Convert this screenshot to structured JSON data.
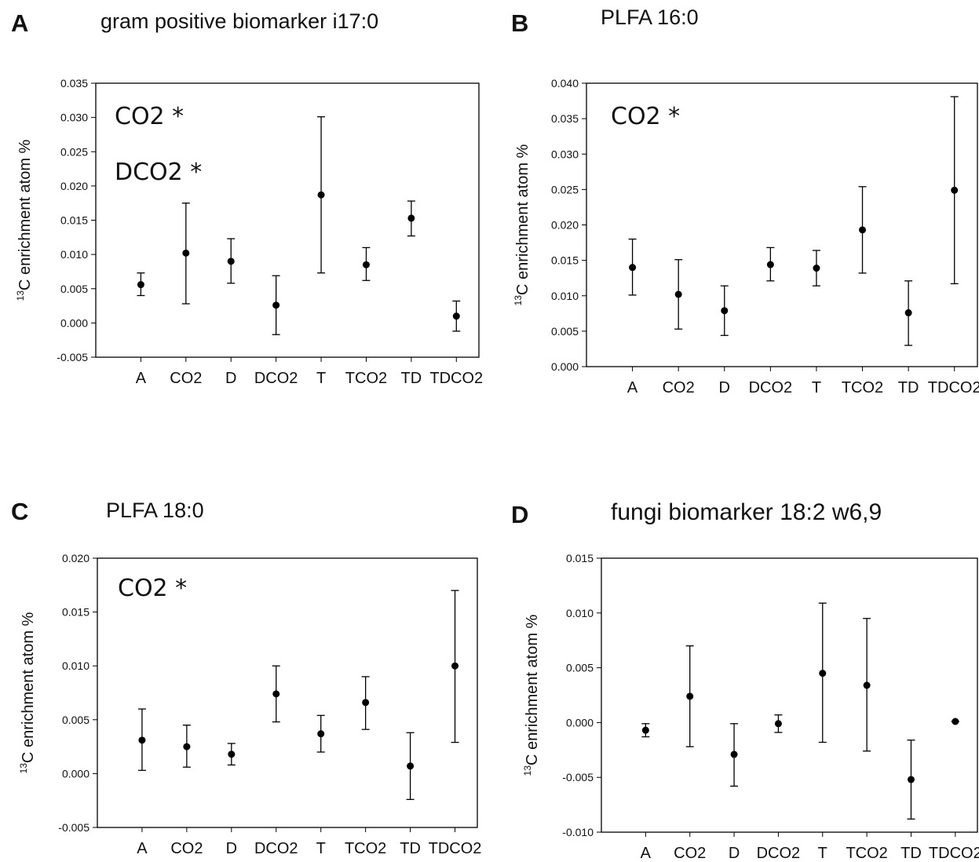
{
  "chart_data": [
    {
      "type": "scatter",
      "panel_letter": "A",
      "title": "gram positive biomarker i17:0",
      "ylabel_sup": "13",
      "ylabel_text": "C enrichment atom %",
      "categories": [
        "A",
        "CO2",
        "D",
        "DCO2",
        "T",
        "TCO2",
        "TD",
        "TDCO2"
      ],
      "values": [
        0.0056,
        0.0102,
        0.009,
        0.0026,
        0.0187,
        0.0085,
        0.0153,
        0.001
      ],
      "err_low": [
        0.004,
        0.0028,
        0.0058,
        -0.0017,
        0.0073,
        0.0062,
        0.0127,
        -0.0012
      ],
      "err_high": [
        0.0073,
        0.0175,
        0.0123,
        0.0069,
        0.0301,
        0.011,
        0.0178,
        0.0032
      ],
      "yticks": [
        "-0.005",
        "0.000",
        "0.005",
        "0.010",
        "0.015",
        "0.020",
        "0.025",
        "0.030",
        "0.035"
      ],
      "ylim": [
        -0.005,
        0.035
      ],
      "annotations": [
        "CO2 *",
        "DCO2 *"
      ],
      "grid": false
    },
    {
      "type": "scatter",
      "panel_letter": "B",
      "title": "PLFA 16:0",
      "ylabel_sup": "13",
      "ylabel_text": "C enrichment atom %",
      "categories": [
        "A",
        "CO2",
        "D",
        "DCO2",
        "T",
        "TCO2",
        "TD",
        "TDCO2"
      ],
      "values": [
        0.014,
        0.0102,
        0.0079,
        0.0144,
        0.0139,
        0.0193,
        0.0076,
        0.0249
      ],
      "err_low": [
        0.0101,
        0.0053,
        0.0044,
        0.0121,
        0.0114,
        0.0132,
        0.003,
        0.0117
      ],
      "err_high": [
        0.018,
        0.0151,
        0.0114,
        0.0168,
        0.0164,
        0.0254,
        0.0121,
        0.0381
      ],
      "yticks": [
        "0.000",
        "0.005",
        "0.010",
        "0.015",
        "0.020",
        "0.025",
        "0.030",
        "0.035",
        "0.040"
      ],
      "ylim": [
        0.0,
        0.04
      ],
      "annotations": [
        "CO2 *"
      ],
      "grid": false
    },
    {
      "type": "scatter",
      "panel_letter": "C",
      "title": "PLFA 18:0",
      "ylabel_sup": "13",
      "ylabel_text": "C enrichment atom %",
      "categories": [
        "A",
        "CO2",
        "D",
        "DCO2",
        "T",
        "TCO2",
        "TD",
        "TDCO2"
      ],
      "values": [
        0.0031,
        0.0025,
        0.0018,
        0.0074,
        0.0037,
        0.0066,
        0.0007,
        0.01
      ],
      "err_low": [
        0.0003,
        0.0006,
        0.0008,
        0.0048,
        0.002,
        0.0041,
        -0.0024,
        0.0029
      ],
      "err_high": [
        0.006,
        0.0045,
        0.0028,
        0.01,
        0.0054,
        0.009,
        0.0038,
        0.017
      ],
      "yticks": [
        "-0.005",
        "0.000",
        "0.005",
        "0.010",
        "0.015",
        "0.020"
      ],
      "ylim": [
        -0.005,
        0.02
      ],
      "annotations": [
        "CO2 *"
      ],
      "grid": false
    },
    {
      "type": "scatter",
      "panel_letter": "D",
      "title": "fungi biomarker 18:2 w6,9",
      "ylabel_sup": "13",
      "ylabel_text": "C enrichment atom %",
      "categories": [
        "A",
        "CO2",
        "D",
        "DCO2",
        "T",
        "TCO2",
        "TD",
        "TDCO2"
      ],
      "values": [
        -0.0007,
        0.0024,
        -0.0029,
        -0.0001,
        0.0045,
        0.0034,
        -0.0052,
        0.0001
      ],
      "err_low": [
        -0.0013,
        -0.0022,
        -0.0058,
        -0.0009,
        -0.0018,
        -0.0026,
        -0.0088,
        0.0001
      ],
      "err_high": [
        -0.0001,
        0.007,
        -0.0001,
        0.0007,
        0.0109,
        0.0095,
        -0.0016,
        0.0001
      ],
      "yticks": [
        "-0.010",
        "-0.005",
        "0.000",
        "0.005",
        "0.010",
        "0.015"
      ],
      "ylim": [
        -0.01,
        0.015
      ],
      "annotations": [],
      "grid": false
    }
  ]
}
